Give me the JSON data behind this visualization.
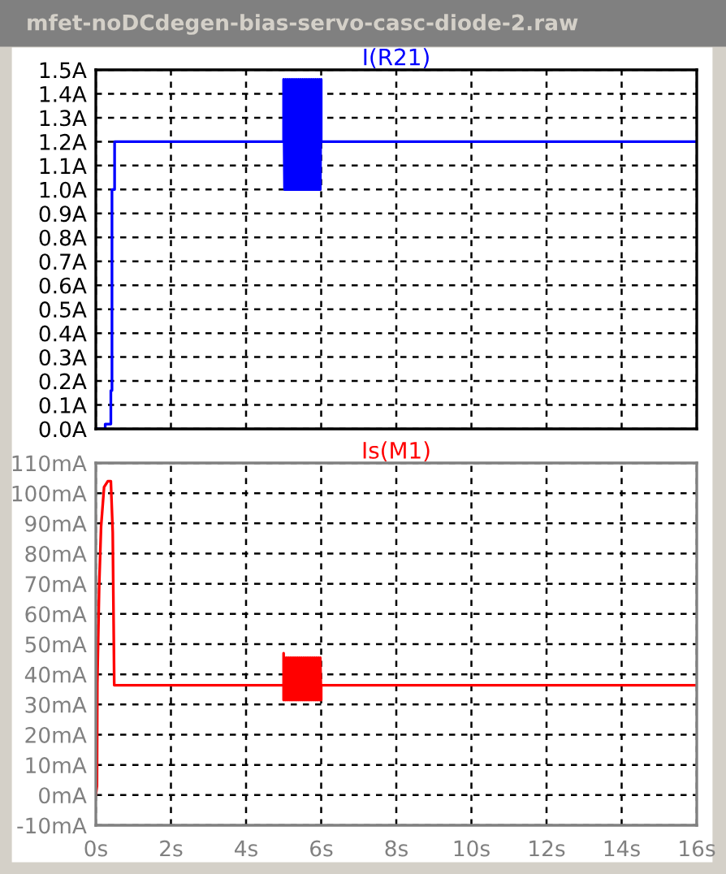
{
  "chart_data": [
    {
      "type": "line",
      "title": "I(R21)",
      "annotations": [
        "mfet-noDCdegen-bias-servo-casc-diode-2.raw"
      ],
      "xlim": [
        0,
        16
      ],
      "ylim": [
        0,
        1.5
      ],
      "grid": true,
      "tick_labels": "y",
      "line_style": "solid",
      "marker": "none",
      "xticks": [
        0,
        2,
        4,
        6,
        8,
        10,
        12,
        14,
        16
      ],
      "yticks": [
        {
          "value": 0,
          "label": "0.0A"
        },
        {
          "value": 0.1,
          "label": "0.1A"
        },
        {
          "value": 0.2,
          "label": "0.2A"
        },
        {
          "value": 0.3,
          "label": "0.3A"
        },
        {
          "value": 0.4,
          "label": "0.4A"
        },
        {
          "value": 0.5,
          "label": "0.5A"
        },
        {
          "value": 0.6,
          "label": "0.6A"
        },
        {
          "value": 0.7,
          "label": "0.7A"
        },
        {
          "value": 0.8,
          "label": "0.8A"
        },
        {
          "value": 0.9,
          "label": "0.9A"
        },
        {
          "value": 1.0,
          "label": "1.0A"
        },
        {
          "value": 1.1,
          "label": "1.1A"
        },
        {
          "value": 1.2,
          "label": "1.2A"
        },
        {
          "value": 1.3,
          "label": "1.3A"
        },
        {
          "value": 1.4,
          "label": "1.4A"
        },
        {
          "value": 1.5,
          "label": "1.5A"
        }
      ],
      "series": [
        {
          "color": "#0000ff",
          "x": [
            0,
            0.25,
            0.25,
            0.4,
            0.4,
            0.43,
            0.43,
            0.5,
            0.5,
            5,
            5,
            5.025,
            5.05,
            5.075,
            5.1,
            5.125,
            5.15,
            5.175,
            5.2,
            5.225,
            5.25,
            5.275,
            5.3,
            5.325,
            5.35,
            5.375,
            5.4,
            5.425,
            5.45,
            5.475,
            5.5,
            5.525,
            5.55,
            5.575,
            5.6,
            5.625,
            5.65,
            5.675,
            5.7,
            5.725,
            5.75,
            5.775,
            5.8,
            5.825,
            5.85,
            5.875,
            5.9,
            5.925,
            5.95,
            5.975,
            6,
            6,
            16
          ],
          "values": [
            0,
            0,
            0.02,
            0.02,
            0.16,
            0.16,
            1.0,
            1.0,
            1.2,
            1.2,
            1.46,
            1.0,
            1.46,
            1.0,
            1.46,
            1.0,
            1.46,
            1.0,
            1.46,
            1.0,
            1.46,
            1.0,
            1.46,
            1.0,
            1.46,
            1.0,
            1.46,
            1.0,
            1.46,
            1.0,
            1.46,
            1.0,
            1.46,
            1.0,
            1.46,
            1.0,
            1.46,
            1.0,
            1.46,
            1.0,
            1.46,
            1.0,
            1.46,
            1.0,
            1.46,
            1.0,
            1.46,
            1.0,
            1.46,
            1.0,
            1.46,
            1.2,
            1.2
          ]
        }
      ]
    },
    {
      "type": "line",
      "title": "Is(M1)",
      "xlim": [
        0,
        16
      ],
      "ylim": [
        -10,
        110
      ],
      "grid": true,
      "line_style": "solid",
      "marker": "none",
      "xticks": [
        {
          "value": 0,
          "label": "0s"
        },
        {
          "value": 2,
          "label": "2s"
        },
        {
          "value": 4,
          "label": "4s"
        },
        {
          "value": 6,
          "label": "6s"
        },
        {
          "value": 8,
          "label": "8s"
        },
        {
          "value": 10,
          "label": "10s"
        },
        {
          "value": 12,
          "label": "12s"
        },
        {
          "value": 14,
          "label": "14s"
        },
        {
          "value": 16,
          "label": "16s"
        }
      ],
      "yticks": [
        {
          "value": -10,
          "label": "-10mA"
        },
        {
          "value": 0,
          "label": "0mA"
        },
        {
          "value": 10,
          "label": "10mA"
        },
        {
          "value": 20,
          "label": "20mA"
        },
        {
          "value": 30,
          "label": "30mA"
        },
        {
          "value": 40,
          "label": "40mA"
        },
        {
          "value": 50,
          "label": "50mA"
        },
        {
          "value": 60,
          "label": "60mA"
        },
        {
          "value": 70,
          "label": "70mA"
        },
        {
          "value": 80,
          "label": "80mA"
        },
        {
          "value": 90,
          "label": "90mA"
        },
        {
          "value": 100,
          "label": "100mA"
        },
        {
          "value": 110,
          "label": "110mA"
        }
      ],
      "series": [
        {
          "color": "#ff0000",
          "x": [
            0,
            0.03,
            0.04,
            0.09,
            0.14,
            0.22,
            0.32,
            0.4,
            0.45,
            0.49,
            5,
            5,
            5,
            5.025,
            5.05,
            5.075,
            5.1,
            5.125,
            5.15,
            5.175,
            5.2,
            5.225,
            5.25,
            5.275,
            5.3,
            5.325,
            5.35,
            5.375,
            5.4,
            5.425,
            5.45,
            5.475,
            5.5,
            5.525,
            5.55,
            5.575,
            5.6,
            5.625,
            5.65,
            5.675,
            5.7,
            5.725,
            5.75,
            5.775,
            5.8,
            5.825,
            5.85,
            5.875,
            5.9,
            5.925,
            5.95,
            5.975,
            6,
            6,
            16
          ],
          "values": [
            0,
            3,
            37,
            69.6,
            89,
            102,
            104,
            104,
            87,
            36.4,
            36.4,
            47,
            31.5,
            45.5,
            31.5,
            45.5,
            31.5,
            45.5,
            31.5,
            45.5,
            31.5,
            45.5,
            31.5,
            45.5,
            31.5,
            45.5,
            31.5,
            45.5,
            31.5,
            45.5,
            31.5,
            45.5,
            31.5,
            45.5,
            31.5,
            45.5,
            31.5,
            45.5,
            31.5,
            45.5,
            31.5,
            45.5,
            31.5,
            45.5,
            31.5,
            45.5,
            31.5,
            45.5,
            31.5,
            45.5,
            31.5,
            45.5,
            31.5,
            36.4,
            36.4
          ]
        }
      ]
    }
  ]
}
